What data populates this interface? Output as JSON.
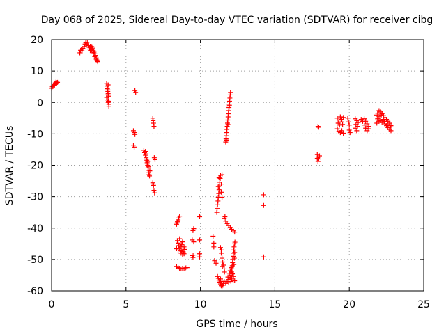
{
  "chart_data": {
    "type": "scatter",
    "title": "Day 068 of 2025, Sidereal Day-to-day VTEC variation (SDTVAR) for receiver cibg",
    "xlabel": "GPS time / hours",
    "ylabel": "SDTVAR / TECUs",
    "xlim": [
      0,
      25
    ],
    "ylim": [
      -60,
      20
    ],
    "xticks": [
      "0",
      "5",
      "10",
      "15",
      "20",
      "25"
    ],
    "yticks": [
      "20",
      "10",
      "0",
      "-10",
      "-20",
      "-30",
      "-40",
      "-50",
      "-60"
    ],
    "grid": true,
    "marker": "+",
    "color": "#ff0000",
    "series": [
      {
        "name": "SDTVAR",
        "points": [
          [
            0.0,
            4.5
          ],
          [
            0.05,
            5.0
          ],
          [
            0.1,
            5.3
          ],
          [
            0.15,
            5.6
          ],
          [
            0.2,
            5.9
          ],
          [
            0.25,
            6.2
          ],
          [
            0.3,
            6.5
          ],
          [
            0.35,
            6.3
          ],
          [
            0.4,
            6.4
          ],
          [
            0.2,
            5.5
          ],
          [
            0.3,
            6.0
          ],
          [
            1.9,
            15.8
          ],
          [
            1.95,
            16.6
          ],
          [
            2.0,
            17.0
          ],
          [
            2.05,
            16.4
          ],
          [
            2.1,
            17.2
          ],
          [
            2.2,
            17.8
          ],
          [
            2.25,
            18.6
          ],
          [
            2.3,
            19.0
          ],
          [
            2.35,
            18.4
          ],
          [
            2.4,
            19.2
          ],
          [
            2.45,
            18.1
          ],
          [
            2.5,
            17.6
          ],
          [
            2.55,
            17.0
          ],
          [
            2.6,
            17.9
          ],
          [
            2.65,
            17.4
          ],
          [
            2.7,
            16.8
          ],
          [
            2.75,
            17.3
          ],
          [
            2.8,
            16.5
          ],
          [
            2.85,
            16.0
          ],
          [
            2.9,
            15.5
          ],
          [
            2.95,
            15.0
          ],
          [
            3.0,
            14.2
          ],
          [
            3.05,
            13.5
          ],
          [
            3.1,
            13.0
          ],
          [
            2.6,
            16.5
          ],
          [
            2.7,
            17.8
          ],
          [
            2.8,
            15.8
          ],
          [
            2.9,
            14.6
          ],
          [
            3.0,
            13.8
          ],
          [
            3.7,
            6.0
          ],
          [
            3.72,
            5.2
          ],
          [
            3.75,
            4.4
          ],
          [
            3.78,
            3.5
          ],
          [
            3.8,
            2.8
          ],
          [
            3.82,
            2.0
          ],
          [
            3.7,
            1.6
          ],
          [
            3.75,
            0.8
          ],
          [
            3.8,
            0.0
          ],
          [
            3.85,
            -0.6
          ],
          [
            3.85,
            -1.2
          ],
          [
            3.8,
            5.6
          ],
          [
            3.78,
            4.0
          ],
          [
            3.72,
            2.4
          ],
          [
            3.82,
            0.4
          ],
          [
            5.6,
            3.8
          ],
          [
            5.65,
            3.2
          ],
          [
            5.5,
            -9.0
          ],
          [
            5.55,
            -9.6
          ],
          [
            5.6,
            -10.2
          ],
          [
            5.5,
            -13.6
          ],
          [
            5.55,
            -14.2
          ],
          [
            6.2,
            -15.2
          ],
          [
            6.25,
            -16.0
          ],
          [
            6.3,
            -16.8
          ],
          [
            6.35,
            -17.6
          ],
          [
            6.4,
            -18.4
          ],
          [
            6.42,
            -19.2
          ],
          [
            6.45,
            -20.0
          ],
          [
            6.48,
            -20.8
          ],
          [
            6.5,
            -21.6
          ],
          [
            6.52,
            -22.4
          ],
          [
            6.55,
            -23.0
          ],
          [
            6.58,
            -23.4
          ],
          [
            6.3,
            -15.6
          ],
          [
            6.45,
            -18.8
          ],
          [
            6.5,
            -20.4
          ],
          [
            6.6,
            -21.8
          ],
          [
            6.35,
            -16.4
          ],
          [
            6.8,
            -5.0
          ],
          [
            6.82,
            -5.8
          ],
          [
            6.85,
            -6.6
          ],
          [
            6.88,
            -7.6
          ],
          [
            6.9,
            -17.6
          ],
          [
            6.95,
            -18.2
          ],
          [
            6.8,
            -25.6
          ],
          [
            6.85,
            -26.4
          ],
          [
            6.88,
            -28.0
          ],
          [
            6.92,
            -28.8
          ],
          [
            8.4,
            -38.8
          ],
          [
            8.45,
            -38.0
          ],
          [
            8.5,
            -37.4
          ],
          [
            8.55,
            -36.8
          ],
          [
            8.6,
            -36.2
          ],
          [
            8.42,
            -38.4
          ],
          [
            8.45,
            -44.0
          ],
          [
            8.5,
            -44.8
          ],
          [
            8.55,
            -45.6
          ],
          [
            8.6,
            -46.4
          ],
          [
            8.65,
            -47.2
          ],
          [
            8.7,
            -46.0
          ],
          [
            8.75,
            -45.2
          ],
          [
            8.8,
            -44.4
          ],
          [
            8.85,
            -47.6
          ],
          [
            8.9,
            -48.2
          ],
          [
            8.95,
            -46.8
          ],
          [
            8.6,
            -43.4
          ],
          [
            8.7,
            -48.0
          ],
          [
            8.8,
            -48.6
          ],
          [
            8.5,
            -47.0
          ],
          [
            8.65,
            -45.0
          ],
          [
            8.75,
            -47.4
          ],
          [
            8.9,
            -46.0
          ],
          [
            8.4,
            -46.6
          ],
          [
            8.4,
            -52.2
          ],
          [
            8.5,
            -52.6
          ],
          [
            8.6,
            -52.8
          ],
          [
            8.7,
            -53.0
          ],
          [
            8.8,
            -52.8
          ],
          [
            8.9,
            -53.0
          ],
          [
            9.0,
            -52.7
          ],
          [
            9.1,
            -52.6
          ],
          [
            9.5,
            -40.8
          ],
          [
            9.55,
            -40.2
          ],
          [
            9.45,
            -43.8
          ],
          [
            9.55,
            -44.4
          ],
          [
            9.45,
            -48.8
          ],
          [
            9.5,
            -49.4
          ],
          [
            9.55,
            -48.6
          ],
          [
            9.95,
            -36.4
          ],
          [
            9.95,
            -43.8
          ],
          [
            9.95,
            -48.2
          ],
          [
            9.95,
            -49.2
          ],
          [
            10.85,
            -42.6
          ],
          [
            10.9,
            -44.8
          ],
          [
            10.9,
            -46.0
          ],
          [
            10.95,
            -50.4
          ],
          [
            11.05,
            -51.2
          ],
          [
            11.15,
            -55.4
          ],
          [
            11.2,
            -56.0
          ],
          [
            11.25,
            -56.6
          ],
          [
            11.3,
            -57.2
          ],
          [
            11.35,
            -57.8
          ],
          [
            11.4,
            -58.4
          ],
          [
            11.45,
            -58.8
          ],
          [
            11.5,
            -58.2
          ],
          [
            11.55,
            -57.6
          ],
          [
            11.6,
            -57.0
          ],
          [
            11.35,
            -56.2
          ],
          [
            11.45,
            -57.0
          ],
          [
            11.1,
            -35.0
          ],
          [
            11.12,
            -33.8
          ],
          [
            11.15,
            -32.6
          ],
          [
            11.18,
            -31.4
          ],
          [
            11.2,
            -30.2
          ],
          [
            11.23,
            -29.0
          ],
          [
            11.25,
            -27.8
          ],
          [
            11.28,
            -26.6
          ],
          [
            11.3,
            -25.4
          ],
          [
            11.33,
            -24.2
          ],
          [
            11.35,
            -23.2
          ],
          [
            11.25,
            -24.0
          ],
          [
            11.4,
            -26.0
          ],
          [
            11.4,
            -28.6
          ],
          [
            11.45,
            -30.2
          ],
          [
            11.45,
            -23.0
          ],
          [
            11.2,
            -26.8
          ],
          [
            11.4,
            -47.0
          ],
          [
            11.4,
            -48.0
          ],
          [
            11.45,
            -49.6
          ],
          [
            11.5,
            -50.8
          ],
          [
            11.55,
            -51.8
          ],
          [
            11.6,
            -53.0
          ],
          [
            11.35,
            -46.2
          ],
          [
            11.48,
            -52.2
          ],
          [
            11.62,
            -54.0
          ],
          [
            11.6,
            -37.0
          ],
          [
            11.7,
            -37.8
          ],
          [
            11.8,
            -38.6
          ],
          [
            11.9,
            -39.2
          ],
          [
            12.0,
            -39.8
          ],
          [
            12.1,
            -40.4
          ],
          [
            12.2,
            -40.9
          ],
          [
            12.3,
            -41.3
          ],
          [
            11.65,
            -36.4
          ],
          [
            11.7,
            -12.6
          ],
          [
            11.72,
            -11.6
          ],
          [
            11.74,
            -10.6
          ],
          [
            11.76,
            -9.6
          ],
          [
            11.78,
            -8.6
          ],
          [
            11.8,
            -7.6
          ],
          [
            11.82,
            -6.6
          ],
          [
            11.84,
            -5.6
          ],
          [
            11.86,
            -4.6
          ],
          [
            11.88,
            -3.6
          ],
          [
            11.9,
            -2.6
          ],
          [
            11.92,
            -1.6
          ],
          [
            11.94,
            -0.6
          ],
          [
            11.96,
            0.4
          ],
          [
            11.98,
            1.4
          ],
          [
            12.0,
            2.4
          ],
          [
            12.02,
            3.2
          ],
          [
            11.75,
            -12.0
          ],
          [
            11.85,
            -7.0
          ],
          [
            11.95,
            -1.0
          ],
          [
            11.7,
            -57.6
          ],
          [
            11.8,
            -57.0
          ],
          [
            11.9,
            -56.4
          ],
          [
            12.0,
            -55.8
          ],
          [
            12.05,
            -55.0
          ],
          [
            12.1,
            -54.0
          ],
          [
            12.12,
            -53.0
          ],
          [
            12.14,
            -52.0
          ],
          [
            12.16,
            -51.0
          ],
          [
            12.18,
            -50.0
          ],
          [
            12.2,
            -49.0
          ],
          [
            12.22,
            -48.0
          ],
          [
            12.24,
            -47.0
          ],
          [
            12.26,
            -46.0
          ],
          [
            12.3,
            -45.0
          ],
          [
            12.32,
            -44.5
          ],
          [
            11.9,
            -57.4
          ],
          [
            12.05,
            -57.0
          ],
          [
            12.2,
            -56.6
          ],
          [
            12.3,
            -56.8
          ],
          [
            11.85,
            -55.6
          ],
          [
            11.95,
            -54.4
          ],
          [
            12.0,
            -53.6
          ],
          [
            12.08,
            -52.6
          ],
          [
            12.1,
            -56.2
          ],
          [
            12.25,
            -51.6
          ],
          [
            12.28,
            -49.6
          ],
          [
            12.15,
            -54.6
          ],
          [
            12.3,
            -47.8
          ],
          [
            12.22,
            -55.4
          ],
          [
            14.25,
            -29.4
          ],
          [
            14.25,
            -32.8
          ],
          [
            14.25,
            -49.2
          ],
          [
            17.9,
            -7.6
          ],
          [
            17.95,
            -7.9
          ],
          [
            17.85,
            -16.6
          ],
          [
            17.9,
            -17.4
          ],
          [
            17.95,
            -18.0
          ],
          [
            17.9,
            -18.8
          ],
          [
            17.85,
            -17.8
          ],
          [
            18.0,
            -17.0
          ],
          [
            19.2,
            -5.0
          ],
          [
            19.3,
            -5.6
          ],
          [
            19.4,
            -4.6
          ],
          [
            19.5,
            -5.4
          ],
          [
            19.6,
            -4.8
          ],
          [
            19.25,
            -6.6
          ],
          [
            19.35,
            -7.2
          ],
          [
            19.45,
            -6.2
          ],
          [
            19.55,
            -7.0
          ],
          [
            19.3,
            -9.2
          ],
          [
            19.4,
            -9.6
          ],
          [
            19.5,
            -9.0
          ],
          [
            19.6,
            -9.8
          ],
          [
            19.2,
            -8.4
          ],
          [
            19.9,
            -5.0
          ],
          [
            19.95,
            -6.2
          ],
          [
            20.0,
            -7.2
          ],
          [
            20.0,
            -8.8
          ],
          [
            20.05,
            -9.6
          ],
          [
            20.4,
            -5.2
          ],
          [
            20.5,
            -5.8
          ],
          [
            20.6,
            -6.4
          ],
          [
            20.45,
            -7.0
          ],
          [
            20.55,
            -7.6
          ],
          [
            20.4,
            -8.2
          ],
          [
            20.5,
            -9.0
          ],
          [
            20.8,
            -5.4
          ],
          [
            20.9,
            -6.0
          ],
          [
            21.0,
            -7.2
          ],
          [
            21.1,
            -8.2
          ],
          [
            21.2,
            -9.0
          ],
          [
            21.3,
            -8.4
          ],
          [
            21.0,
            -5.2
          ],
          [
            21.1,
            -6.0
          ],
          [
            21.2,
            -6.8
          ],
          [
            21.3,
            -7.6
          ],
          [
            21.8,
            -4.0
          ],
          [
            21.9,
            -3.4
          ],
          [
            22.0,
            -2.6
          ],
          [
            22.1,
            -3.0
          ],
          [
            22.2,
            -3.6
          ],
          [
            22.3,
            -4.2
          ],
          [
            22.4,
            -4.8
          ],
          [
            22.5,
            -5.4
          ],
          [
            22.6,
            -6.0
          ],
          [
            22.7,
            -6.6
          ],
          [
            22.8,
            -7.4
          ],
          [
            21.9,
            -5.2
          ],
          [
            22.0,
            -6.0
          ],
          [
            22.1,
            -5.8
          ],
          [
            22.2,
            -6.4
          ],
          [
            22.3,
            -5.4
          ],
          [
            22.4,
            -6.8
          ],
          [
            22.5,
            -7.4
          ],
          [
            22.6,
            -8.0
          ],
          [
            22.7,
            -8.6
          ],
          [
            22.8,
            -9.0
          ],
          [
            21.85,
            -6.6
          ],
          [
            22.0,
            -4.4
          ],
          [
            22.15,
            -4.0
          ],
          [
            22.35,
            -6.0
          ],
          [
            22.55,
            -7.0
          ],
          [
            22.75,
            -7.8
          ]
        ]
      }
    ]
  }
}
